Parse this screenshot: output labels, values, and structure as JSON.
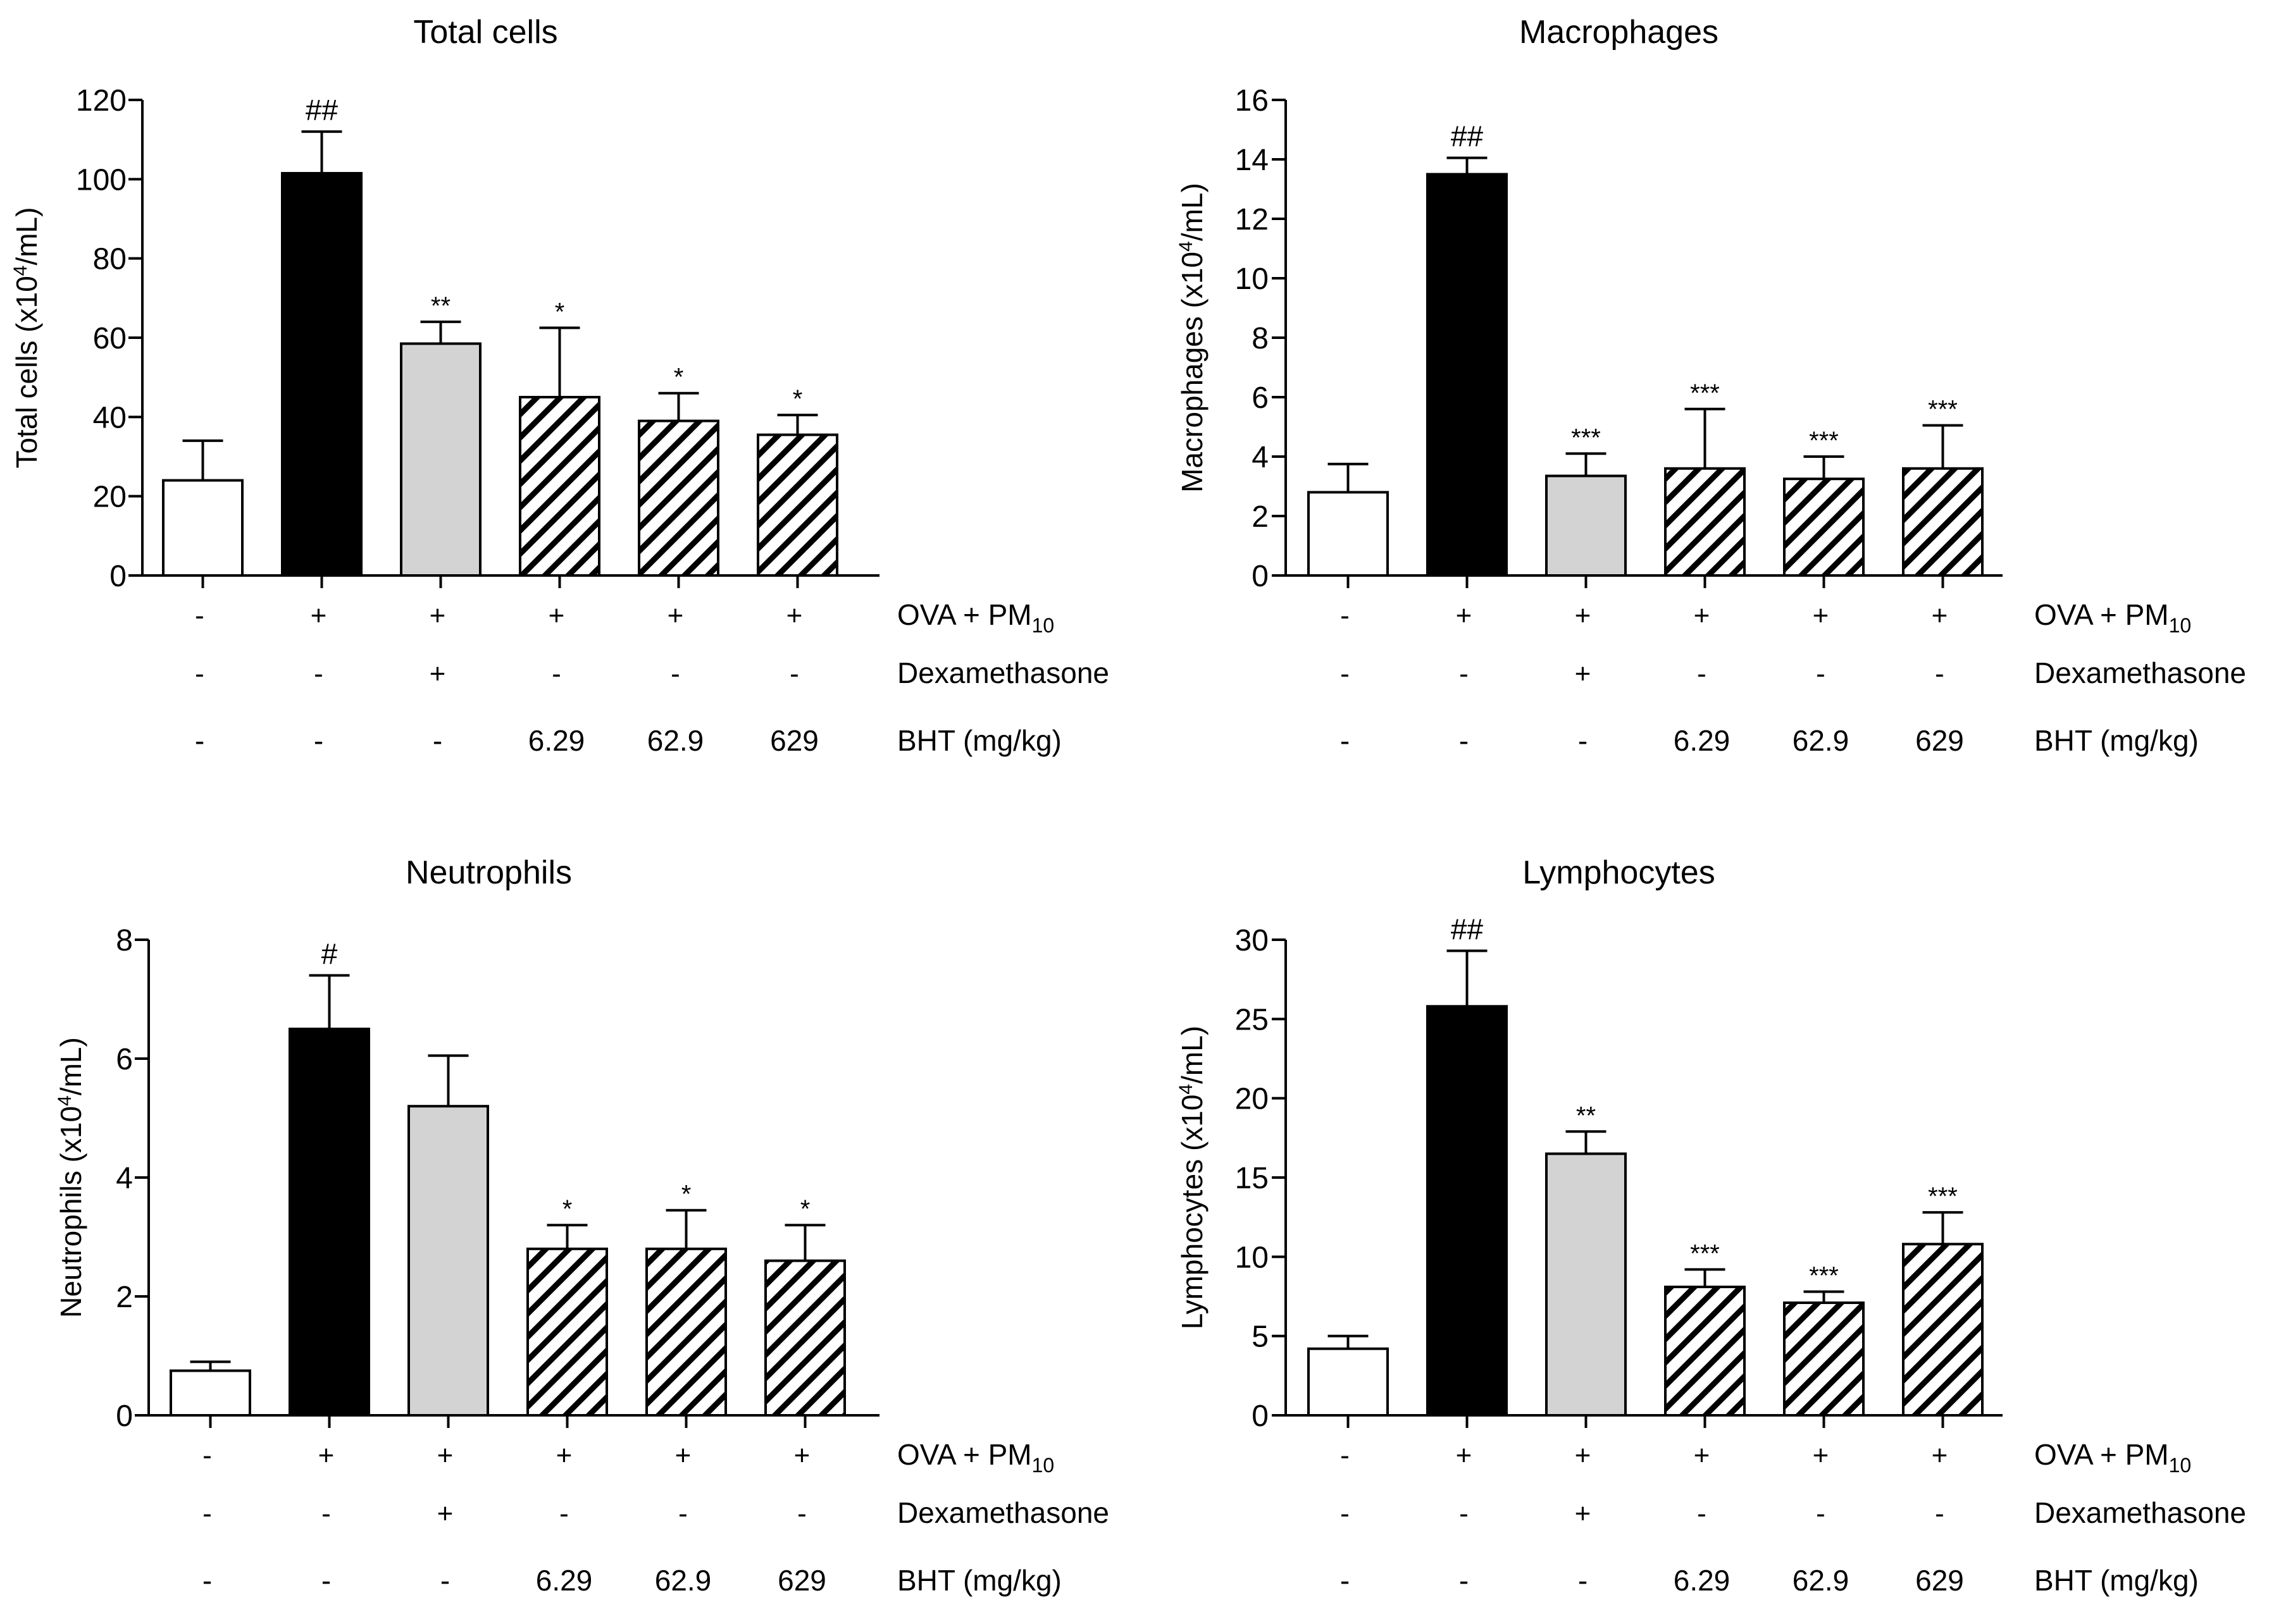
{
  "figure": {
    "row_labels": {
      "ova": "OVA + PM",
      "ova_sub": "10",
      "dex": "Dexamethasone",
      "bht": "BHT (mg/kg)"
    },
    "groups": [
      {
        "ova": "-",
        "dex": "-",
        "bht": "-",
        "fill": "white"
      },
      {
        "ova": "+",
        "dex": "-",
        "bht": "-",
        "fill": "black"
      },
      {
        "ova": "+",
        "dex": "+",
        "bht": "-",
        "fill": "gray"
      },
      {
        "ova": "+",
        "dex": "-",
        "bht": "6.29",
        "fill": "hatch"
      },
      {
        "ova": "+",
        "dex": "-",
        "bht": "62.9",
        "fill": "hatch"
      },
      {
        "ova": "+",
        "dex": "-",
        "bht": "629",
        "fill": "hatch"
      }
    ],
    "colors": {
      "black": "#000000",
      "gray": "#d3d3d3",
      "white": "#ffffff",
      "hatch_line": "#000000"
    }
  },
  "chart_data": [
    {
      "type": "bar",
      "title": "Total cells",
      "ylabel_main": "Total cells (x10",
      "ylabel_sup": "4",
      "ylabel_tail": "/mL)",
      "ylim": [
        0,
        120
      ],
      "yticks": [
        0,
        20,
        40,
        60,
        80,
        100,
        120
      ],
      "values": [
        24,
        101.5,
        58.5,
        45,
        39,
        35.5
      ],
      "errors": [
        10,
        10.5,
        5.5,
        17.5,
        7,
        5
      ],
      "annotations": [
        "",
        "##",
        "**",
        "*",
        "*",
        "*"
      ]
    },
    {
      "type": "bar",
      "title": "Macrophages",
      "ylabel_main": "Macrophages (x10",
      "ylabel_sup": "4",
      "ylabel_tail": "/mL)",
      "ylim": [
        0,
        16
      ],
      "yticks": [
        0,
        2,
        4,
        6,
        8,
        10,
        12,
        14,
        16
      ],
      "values": [
        2.8,
        13.5,
        3.35,
        3.6,
        3.25,
        3.6
      ],
      "errors": [
        0.95,
        0.55,
        0.75,
        2.0,
        0.75,
        1.45
      ],
      "annotations": [
        "",
        "##",
        "***",
        "***",
        "***",
        "***"
      ]
    },
    {
      "type": "bar",
      "title": "Neutrophils",
      "ylabel_main": "Neutrophils (x10",
      "ylabel_sup": "4",
      "ylabel_tail": "/mL)",
      "ylim": [
        0,
        8
      ],
      "yticks": [
        0,
        2,
        4,
        6,
        8
      ],
      "values": [
        0.75,
        6.5,
        5.2,
        2.8,
        2.8,
        2.6
      ],
      "errors": [
        0.15,
        0.9,
        0.85,
        0.4,
        0.65,
        0.6
      ],
      "annotations": [
        "",
        "#",
        "",
        "*",
        "*",
        "*"
      ]
    },
    {
      "type": "bar",
      "title": "Lymphocytes",
      "ylabel_main": "Lymphocytes (x10",
      "ylabel_sup": "4",
      "ylabel_tail": "/mL)",
      "ylim": [
        0,
        30
      ],
      "yticks": [
        0,
        5,
        10,
        15,
        20,
        25,
        30
      ],
      "values": [
        4.2,
        25.8,
        16.5,
        8.1,
        7.1,
        10.8
      ],
      "errors": [
        0.8,
        3.5,
        1.4,
        1.1,
        0.7,
        2.0
      ],
      "annotations": [
        "",
        "##",
        "**",
        "***",
        "***",
        "***"
      ]
    }
  ]
}
